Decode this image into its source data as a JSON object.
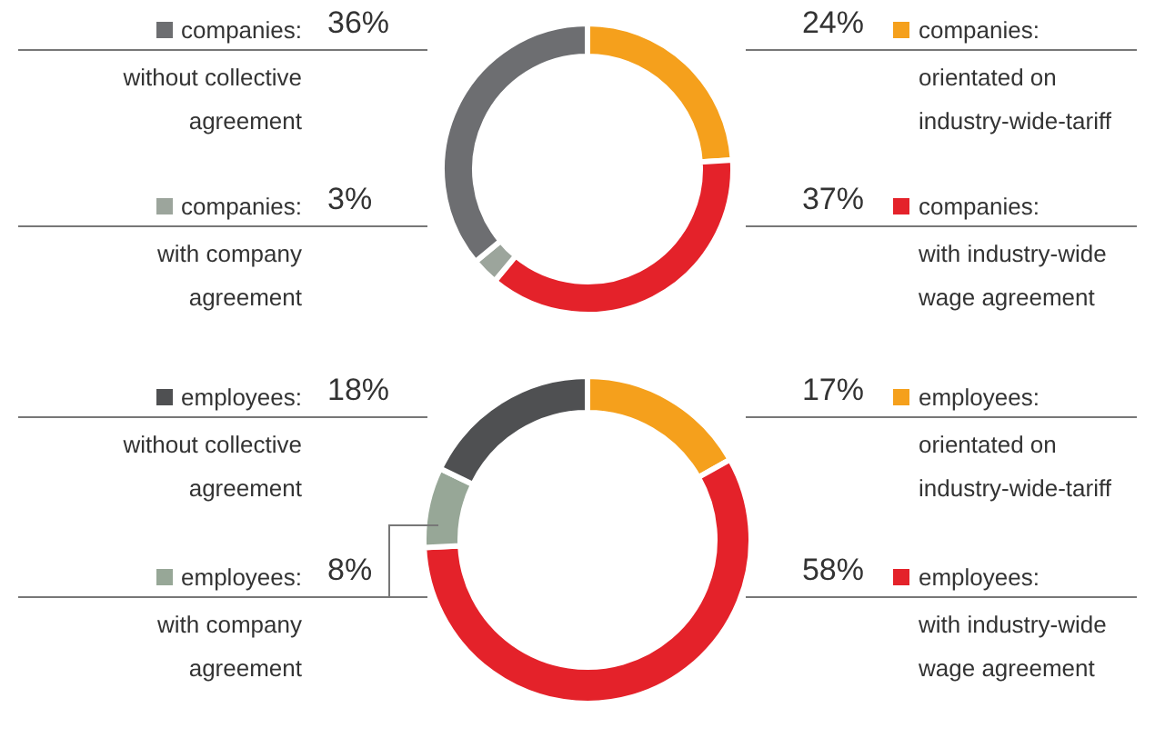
{
  "chart_data": [
    {
      "type": "donut",
      "categories": [
        "companies: orientated on industry-wide-tariff",
        "companies: with industry-wide wage agreement",
        "companies: with company agreement",
        "companies: without collective agreement"
      ],
      "values": [
        24,
        37,
        3,
        36
      ],
      "value_labels": [
        "24%",
        "37%",
        "3%",
        "36%"
      ],
      "colors": [
        "#f5a01c",
        "#e4222a",
        "#9ca59c",
        "#6d6e71"
      ],
      "legend": "right"
    },
    {
      "type": "donut",
      "categories": [
        "employees: orientated on industry-wide-tariff",
        "employees: with industry-wide wage agreement",
        "employees: with company agreement",
        "employees: without collective agreement"
      ],
      "values": [
        17,
        58,
        8,
        18
      ],
      "value_labels": [
        "17%",
        "58%",
        "8%",
        "18%"
      ],
      "colors": [
        "#f5a01c",
        "#e4222a",
        "#97a797",
        "#4f5052"
      ],
      "legend": "right"
    }
  ]
}
